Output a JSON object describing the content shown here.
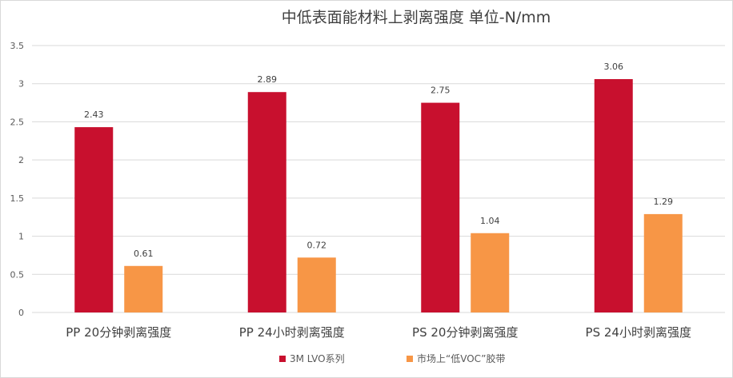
{
  "chart_data": {
    "type": "bar",
    "title": "中低表面能材料上剥离强度  单位-N/mm",
    "categories": [
      "PP 20分钟剥离强度",
      "PP 24小时剥离强度",
      "PS 20分钟剥离强度",
      "PS 24小时剥离强度"
    ],
    "series": [
      {
        "name": "3M LVO系列",
        "values": [
          2.43,
          2.89,
          2.75,
          3.06
        ],
        "color": "#c8102e"
      },
      {
        "name": "市场上“低VOC”胶带",
        "values": [
          0.61,
          0.72,
          1.04,
          1.29
        ],
        "color": "#f79646"
      }
    ],
    "data_labels": [
      [
        "2.43",
        "2.89",
        "2.75",
        "3.06"
      ],
      [
        "0.61",
        "0.72",
        "1.04",
        "1.29"
      ]
    ],
    "yticks": [
      "0",
      "0.5",
      "1",
      "1.5",
      "2",
      "2.5",
      "3",
      "3.5"
    ],
    "ylim": [
      0,
      3.5
    ],
    "xlabel": "",
    "ylabel": "",
    "grid": true,
    "legend_position": "bottom"
  }
}
